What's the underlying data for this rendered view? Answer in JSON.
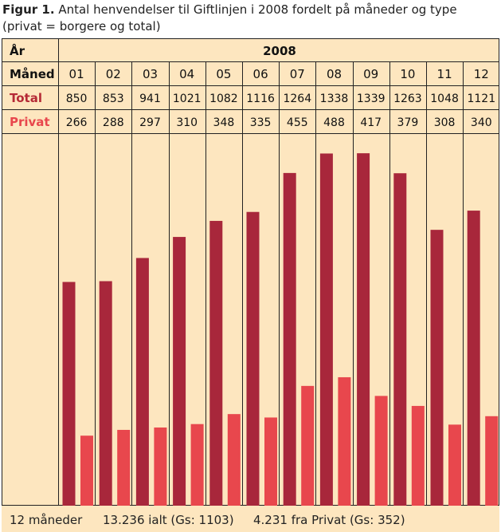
{
  "caption": {
    "label": "Figur 1.",
    "text": "Antal henvendelser til Giftlinjen i 2008 fordelt på måneder og type (privat = borgere og total)"
  },
  "colors": {
    "background": "#fde6bf",
    "total": "#a8273b",
    "privat": "#e8474d",
    "total_label": "#b52a36",
    "privat_label": "#e8474d"
  },
  "table": {
    "year_label": "År",
    "year": "2008",
    "month_label": "Måned",
    "total_label": "Total",
    "privat_label": "Privat"
  },
  "chart_data": {
    "type": "bar",
    "categories": [
      "01",
      "02",
      "03",
      "04",
      "05",
      "06",
      "07",
      "08",
      "09",
      "10",
      "11",
      "12"
    ],
    "series": [
      {
        "name": "Total",
        "values": [
          850,
          853,
          941,
          1021,
          1082,
          1116,
          1264,
          1338,
          1339,
          1263,
          1048,
          1121
        ]
      },
      {
        "name": "Privat",
        "values": [
          266,
          288,
          297,
          310,
          348,
          335,
          455,
          488,
          417,
          379,
          308,
          340
        ]
      }
    ],
    "ylim": [
      0,
      1400
    ],
    "grid": false,
    "legend": "none"
  },
  "footer": {
    "months": "12 måneder",
    "total": "13.236 ialt (Gs: 1103)",
    "privat": "4.231 fra Privat (Gs: 352)"
  }
}
